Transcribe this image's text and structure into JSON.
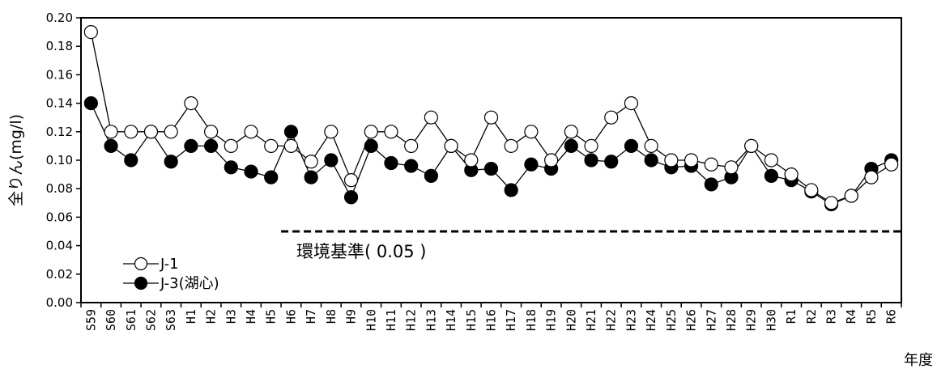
{
  "chart_data": {
    "type": "line",
    "title": "",
    "xlabel": "年度",
    "ylabel": "全りん(mg/l)",
    "ylim": [
      0,
      0.2
    ],
    "yticks": [
      "0.00",
      "0.02",
      "0.04",
      "0.06",
      "0.08",
      "0.10",
      "0.12",
      "0.14",
      "0.16",
      "0.18",
      "0.20"
    ],
    "legend_position": "bottom-left",
    "grid": false,
    "categories": [
      "S59",
      "S60",
      "S61",
      "S62",
      "S63",
      "H1",
      "H2",
      "H3",
      "H4",
      "H5",
      "H6",
      "H7",
      "H8",
      "H9",
      "H10",
      "H11",
      "H12",
      "H13",
      "H14",
      "H15",
      "H16",
      "H17",
      "H18",
      "H19",
      "H20",
      "H21",
      "H22",
      "H23",
      "H24",
      "H25",
      "H26",
      "H27",
      "H28",
      "H29",
      "H30",
      "R1",
      "R2",
      "R3",
      "R4",
      "R5",
      "R6"
    ],
    "series": [
      {
        "name": "J-1",
        "marker": "open-circle",
        "values": [
          0.19,
          0.12,
          0.12,
          0.12,
          0.12,
          0.14,
          0.12,
          0.11,
          0.12,
          0.11,
          0.11,
          0.099,
          0.12,
          0.086,
          0.12,
          0.12,
          0.11,
          0.13,
          0.11,
          0.1,
          0.13,
          0.11,
          0.12,
          0.1,
          0.12,
          0.11,
          0.13,
          0.14,
          0.11,
          0.1,
          0.1,
          0.097,
          0.095,
          0.11,
          0.1,
          0.09,
          0.079,
          0.07,
          0.075,
          0.088,
          0.097
        ]
      },
      {
        "name": "J-3(湖心)",
        "marker": "filled-circle",
        "values": [
          0.14,
          0.11,
          0.1,
          0.12,
          0.099,
          0.11,
          0.11,
          0.095,
          0.092,
          0.088,
          0.12,
          0.088,
          0.1,
          0.074,
          0.11,
          0.098,
          0.096,
          0.089,
          0.11,
          0.093,
          0.094,
          0.079,
          0.097,
          0.094,
          0.11,
          0.1,
          0.099,
          0.11,
          0.1,
          0.095,
          0.096,
          0.083,
          0.088,
          0.11,
          0.089,
          0.086,
          0.078,
          0.069,
          0.075,
          0.094,
          0.1
        ]
      }
    ],
    "reference_line": {
      "label": "環境基準( 0.05 )",
      "value": 0.05,
      "start_category": "H6",
      "style": "dashed"
    }
  }
}
